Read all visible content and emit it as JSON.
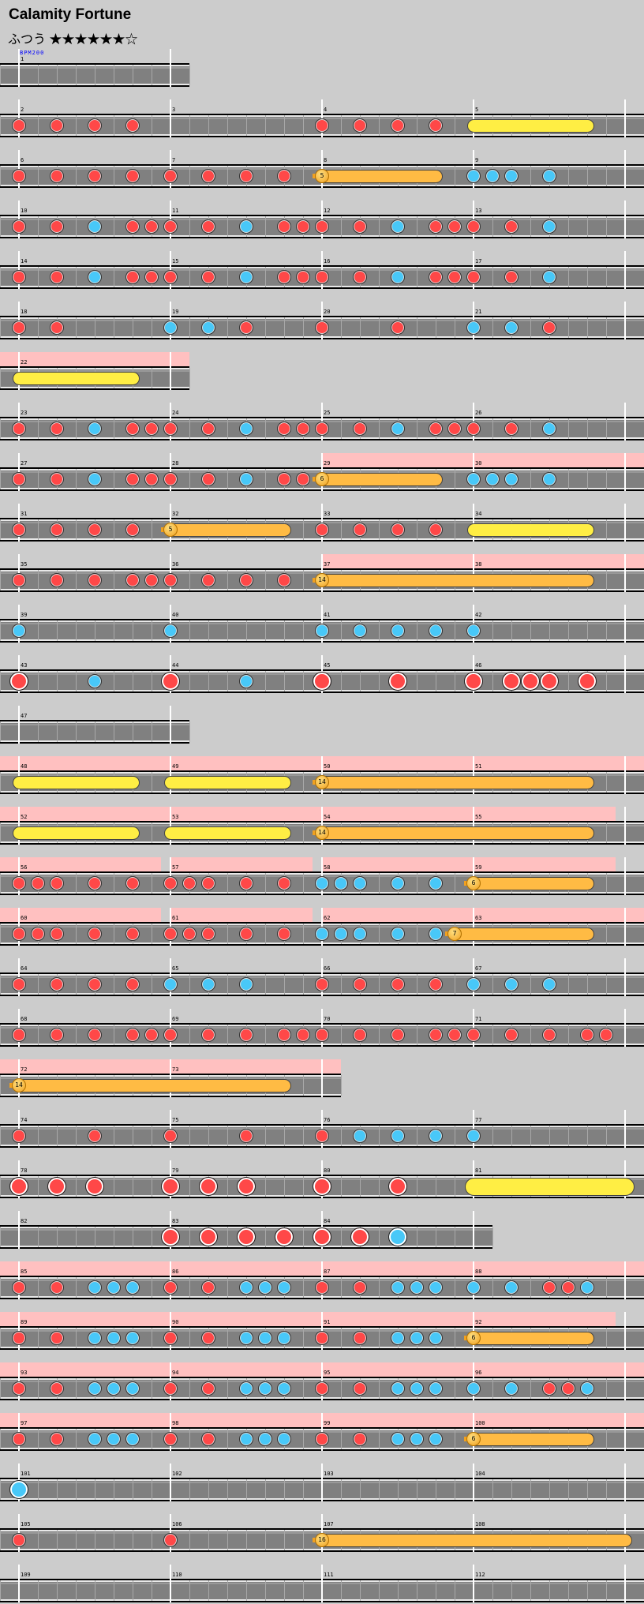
{
  "header": {
    "title": "Calamity Fortune",
    "difficulty": "ふつう ★★★★★★☆",
    "stars_filled": 6,
    "stars_total": 7
  },
  "colors": {
    "don": "#ff4848",
    "ka": "#48c8f8",
    "drumroll": "#ffee44",
    "balloon": "#ffbb44",
    "gogo": "#ffc0c0",
    "track": "#808080",
    "background": "#cccccc",
    "bpm": "#0000ff"
  },
  "legend_note_codes": {
    "0": "none",
    "1": "don",
    "2": "ka",
    "3": "big-don",
    "4": "big-ka"
  },
  "bpm_markers": [
    {
      "measure": "1",
      "label": "BPM200"
    }
  ],
  "rows": [
    {
      "measures": [
        {
          "n": "1",
          "notes": "00000000"
        }
      ],
      "rolls": [],
      "gogo": []
    },
    {
      "measures": [
        {
          "n": "2",
          "notes": "10101010"
        },
        {
          "n": "3",
          "notes": "00000000"
        },
        {
          "n": "4",
          "notes": "10101010"
        },
        {
          "n": "5",
          "notes": "00000000"
        }
      ],
      "rolls": [
        {
          "type": "drumroll",
          "start": [
            3,
            0
          ],
          "end": [
            3,
            6
          ]
        }
      ],
      "gogo": []
    },
    {
      "measures": [
        {
          "n": "6",
          "notes": "10101010"
        },
        {
          "n": "7",
          "notes": "10101010"
        },
        {
          "n": "8",
          "notes": "00000000"
        },
        {
          "n": "9",
          "notes": "22202000"
        }
      ],
      "rolls": [
        {
          "type": "balloon",
          "count": "5",
          "start": [
            2,
            0
          ],
          "end": [
            2,
            6
          ]
        }
      ],
      "gogo": []
    },
    {
      "measures": [
        {
          "n": "10",
          "notes": "10102011"
        },
        {
          "n": "11",
          "notes": "10102011"
        },
        {
          "n": "12",
          "notes": "10102011"
        },
        {
          "n": "13",
          "notes": "10102000"
        }
      ],
      "rolls": [],
      "gogo": []
    },
    {
      "measures": [
        {
          "n": "14",
          "notes": "10102011"
        },
        {
          "n": "15",
          "notes": "10102011"
        },
        {
          "n": "16",
          "notes": "10102011"
        },
        {
          "n": "17",
          "notes": "10102000"
        }
      ],
      "rolls": [],
      "gogo": []
    },
    {
      "measures": [
        {
          "n": "18",
          "notes": "10100000"
        },
        {
          "n": "19",
          "notes": "20201000"
        },
        {
          "n": "20",
          "notes": "10001000"
        },
        {
          "n": "21",
          "notes": "20201000"
        }
      ],
      "rolls": [],
      "gogo": []
    },
    {
      "measures": [
        {
          "n": "22",
          "notes": "00000000"
        }
      ],
      "rolls": [
        {
          "type": "drumroll",
          "start": [
            0,
            0
          ],
          "end": [
            0,
            6
          ]
        }
      ],
      "gogo": [
        [
          -1,
          9
        ]
      ]
    },
    {
      "measures": [
        {
          "n": "23",
          "notes": "10102011"
        },
        {
          "n": "24",
          "notes": "10102011"
        },
        {
          "n": "25",
          "notes": "10102011"
        },
        {
          "n": "26",
          "notes": "10102000"
        }
      ],
      "rolls": [],
      "gogo": []
    },
    {
      "measures": [
        {
          "n": "27",
          "notes": "10102011"
        },
        {
          "n": "28",
          "notes": "10102011"
        },
        {
          "n": "29",
          "notes": "00000000"
        },
        {
          "n": "30",
          "notes": "22202000"
        }
      ],
      "rolls": [
        {
          "type": "balloon",
          "count": "6",
          "start": [
            2,
            0
          ],
          "end": [
            2,
            6
          ]
        }
      ],
      "gogo": [
        [
          16,
          33
        ]
      ]
    },
    {
      "measures": [
        {
          "n": "31",
          "notes": "10101010"
        },
        {
          "n": "32",
          "notes": "00000000"
        },
        {
          "n": "33",
          "notes": "10101010"
        },
        {
          "n": "34",
          "notes": "00000000"
        }
      ],
      "rolls": [
        {
          "type": "balloon",
          "count": "5",
          "start": [
            1,
            0
          ],
          "end": [
            1,
            6
          ]
        },
        {
          "type": "drumroll",
          "start": [
            3,
            0
          ],
          "end": [
            3,
            6
          ]
        }
      ],
      "gogo": []
    },
    {
      "measures": [
        {
          "n": "35",
          "notes": "10101011"
        },
        {
          "n": "36",
          "notes": "10101010"
        },
        {
          "n": "37",
          "notes": "00000000"
        },
        {
          "n": "38",
          "notes": "00000000"
        }
      ],
      "rolls": [
        {
          "type": "balloon",
          "count": "14",
          "start": [
            2,
            0
          ],
          "end": [
            3,
            6
          ]
        }
      ],
      "gogo": [
        [
          16,
          33
        ]
      ]
    },
    {
      "measures": [
        {
          "n": "39",
          "notes": "20000000"
        },
        {
          "n": "40",
          "notes": "20000000"
        },
        {
          "n": "41",
          "notes": "20202020"
        },
        {
          "n": "42",
          "notes": "20000000"
        }
      ],
      "rolls": [],
      "gogo": []
    },
    {
      "measures": [
        {
          "n": "43",
          "notes": "30002000"
        },
        {
          "n": "44",
          "notes": "30002000"
        },
        {
          "n": "45",
          "notes": "30003000"
        },
        {
          "n": "46",
          "notes": "30333030"
        }
      ],
      "rolls": [],
      "gogo": []
    },
    {
      "measures": [
        {
          "n": "47",
          "notes": "00000000"
        }
      ],
      "rolls": [],
      "gogo": []
    },
    {
      "measures": [
        {
          "n": "48",
          "notes": "00000000"
        },
        {
          "n": "49",
          "notes": "00000000"
        },
        {
          "n": "50",
          "notes": "00000000"
        },
        {
          "n": "51",
          "notes": "00000000"
        }
      ],
      "rolls": [
        {
          "type": "drumroll",
          "start": [
            0,
            0
          ],
          "end": [
            0,
            6
          ]
        },
        {
          "type": "drumroll",
          "start": [
            1,
            0
          ],
          "end": [
            1,
            6
          ]
        },
        {
          "type": "balloon",
          "count": "14",
          "start": [
            2,
            0
          ],
          "end": [
            3,
            6
          ]
        }
      ],
      "gogo": [
        [
          -1,
          33
        ]
      ]
    },
    {
      "measures": [
        {
          "n": "52",
          "notes": "00000000"
        },
        {
          "n": "53",
          "notes": "00000000"
        },
        {
          "n": "54",
          "notes": "00000000"
        },
        {
          "n": "55",
          "notes": "00000000"
        }
      ],
      "rolls": [
        {
          "type": "drumroll",
          "start": [
            0,
            0
          ],
          "end": [
            0,
            6
          ]
        },
        {
          "type": "drumroll",
          "start": [
            1,
            0
          ],
          "end": [
            1,
            6
          ]
        },
        {
          "type": "balloon",
          "count": "14",
          "start": [
            2,
            0
          ],
          "end": [
            3,
            6
          ]
        }
      ],
      "gogo": [
        [
          -1,
          31.5
        ]
      ]
    },
    {
      "measures": [
        {
          "n": "56",
          "notes": "11101010"
        },
        {
          "n": "57",
          "notes": "11101010"
        },
        {
          "n": "58",
          "notes": "22202020"
        },
        {
          "n": "59",
          "notes": "00000000"
        }
      ],
      "rolls": [
        {
          "type": "balloon",
          "count": "6",
          "start": [
            3,
            0
          ],
          "end": [
            3,
            6
          ]
        }
      ],
      "gogo": [
        [
          -1,
          7.5
        ],
        [
          8,
          15.5
        ],
        [
          16,
          31.5
        ]
      ]
    },
    {
      "measures": [
        {
          "n": "60",
          "notes": "11101010"
        },
        {
          "n": "61",
          "notes": "11101010"
        },
        {
          "n": "62",
          "notes": "22202020"
        },
        {
          "n": "63",
          "notes": "00000000"
        }
      ],
      "rolls": [
        {
          "type": "balloon",
          "count": "7",
          "start": [
            2,
            7
          ],
          "end": [
            3,
            6
          ]
        }
      ],
      "gogo": [
        [
          -1,
          7.5
        ],
        [
          8,
          15.5
        ],
        [
          16,
          33
        ]
      ]
    },
    {
      "measures": [
        {
          "n": "64",
          "notes": "10101010"
        },
        {
          "n": "65",
          "notes": "20202000"
        },
        {
          "n": "66",
          "notes": "10101010"
        },
        {
          "n": "67",
          "notes": "20202000"
        }
      ],
      "rolls": [],
      "gogo": []
    },
    {
      "measures": [
        {
          "n": "68",
          "notes": "10101011"
        },
        {
          "n": "69",
          "notes": "10101011"
        },
        {
          "n": "70",
          "notes": "10101011"
        },
        {
          "n": "71",
          "notes": "10101011"
        }
      ],
      "rolls": [],
      "gogo": []
    },
    {
      "measures": [
        {
          "n": "72",
          "notes": "00000000"
        },
        {
          "n": "73",
          "notes": "00000000"
        }
      ],
      "rolls": [
        {
          "type": "balloon",
          "count": "14",
          "start": [
            0,
            0
          ],
          "end": [
            1,
            6
          ]
        }
      ],
      "gogo": [
        [
          -1,
          17
        ]
      ]
    },
    {
      "measures": [
        {
          "n": "74",
          "notes": "10001000"
        },
        {
          "n": "75",
          "notes": "10001000"
        },
        {
          "n": "76",
          "notes": "10202020"
        },
        {
          "n": "77",
          "notes": "20000000"
        }
      ],
      "rolls": [],
      "gogo": []
    },
    {
      "measures": [
        {
          "n": "78",
          "notes": "30303000"
        },
        {
          "n": "79",
          "notes": "30303000"
        },
        {
          "n": "80",
          "notes": "30003000"
        },
        {
          "n": "81",
          "notes": "00000000"
        }
      ],
      "rolls": [
        {
          "type": "big_drumroll",
          "start": [
            3,
            0
          ],
          "end": [
            3,
            8
          ]
        }
      ],
      "gogo": []
    },
    {
      "measures": [
        {
          "n": "82",
          "notes": "00000000"
        },
        {
          "n": "83",
          "notes": "30303030"
        },
        {
          "n": "84",
          "notes": "30304000"
        }
      ],
      "rolls": [],
      "gogo": []
    },
    {
      "measures": [
        {
          "n": "85",
          "notes": "10102220"
        },
        {
          "n": "86",
          "notes": "10102220"
        },
        {
          "n": "87",
          "notes": "10102220"
        },
        {
          "n": "88",
          "notes": "20201120"
        }
      ],
      "rolls": [],
      "gogo": [
        [
          -1,
          33
        ]
      ]
    },
    {
      "measures": [
        {
          "n": "89",
          "notes": "10102220"
        },
        {
          "n": "90",
          "notes": "10102220"
        },
        {
          "n": "91",
          "notes": "10102220"
        },
        {
          "n": "92",
          "notes": "00000000"
        }
      ],
      "rolls": [
        {
          "type": "balloon",
          "count": "6",
          "start": [
            3,
            0
          ],
          "end": [
            3,
            6
          ]
        }
      ],
      "gogo": [
        [
          -1,
          31.5
        ]
      ]
    },
    {
      "measures": [
        {
          "n": "93",
          "notes": "10102220"
        },
        {
          "n": "94",
          "notes": "10102220"
        },
        {
          "n": "95",
          "notes": "10102220"
        },
        {
          "n": "96",
          "notes": "20201120"
        }
      ],
      "rolls": [],
      "gogo": [
        [
          -1,
          33
        ]
      ]
    },
    {
      "measures": [
        {
          "n": "97",
          "notes": "10102220"
        },
        {
          "n": "98",
          "notes": "10102220"
        },
        {
          "n": "99",
          "notes": "10102220"
        },
        {
          "n": "100",
          "notes": "00000000"
        }
      ],
      "rolls": [
        {
          "type": "balloon",
          "count": "6",
          "start": [
            3,
            0
          ],
          "end": [
            3,
            6
          ]
        }
      ],
      "gogo": [
        [
          -1,
          33
        ]
      ]
    },
    {
      "measures": [
        {
          "n": "101",
          "notes": "40000000"
        },
        {
          "n": "102",
          "notes": "00000000"
        },
        {
          "n": "103",
          "notes": "00000000"
        },
        {
          "n": "104",
          "notes": "00000000"
        }
      ],
      "rolls": [],
      "gogo": []
    },
    {
      "measures": [
        {
          "n": "105",
          "notes": "10000000"
        },
        {
          "n": "106",
          "notes": "10000000"
        },
        {
          "n": "107",
          "notes": "00000000"
        },
        {
          "n": "108",
          "notes": "00000000"
        }
      ],
      "rolls": [
        {
          "type": "balloon",
          "count": "16",
          "start": [
            2,
            0
          ],
          "end": [
            3,
            8
          ]
        }
      ],
      "gogo": []
    },
    {
      "measures": [
        {
          "n": "109",
          "notes": "00000000"
        },
        {
          "n": "110",
          "notes": "00000000"
        },
        {
          "n": "111",
          "notes": "00000000"
        },
        {
          "n": "112",
          "notes": "00000000"
        }
      ],
      "rolls": [],
      "gogo": []
    }
  ]
}
